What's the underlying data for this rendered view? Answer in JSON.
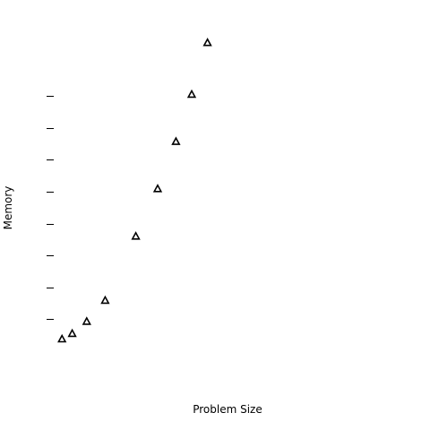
{
  "chart_data": {
    "type": "scatter",
    "xlabel": "Problem Size",
    "ylabel": "Memory",
    "marker": "open-triangle",
    "marker_color": "#000000",
    "x_ticks_shown": false,
    "y_tick_labels_shown": false,
    "grid": false,
    "legend": "none",
    "y_ticks": [
      1,
      2,
      3,
      4,
      5,
      6,
      7,
      8
    ],
    "xlim": [
      0,
      20
    ],
    "ylim": [
      0,
      10
    ],
    "x": [
      0.46,
      1.03,
      1.84,
      2.87,
      4.58,
      5.8,
      6.82,
      7.7,
      8.58
    ],
    "y": [
      0.38,
      0.55,
      0.93,
      1.59,
      3.6,
      5.09,
      6.57,
      8.05,
      9.67
    ]
  }
}
